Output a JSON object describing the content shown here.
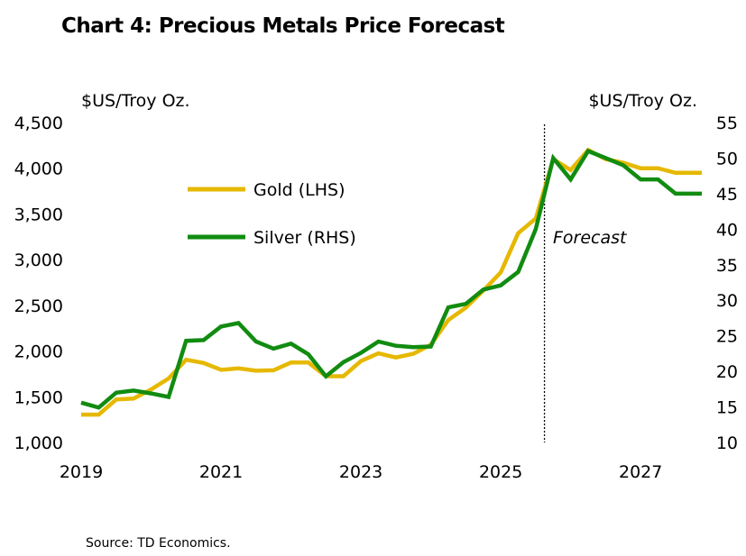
{
  "title": "Chart 4: Precious Metals Price Forecast",
  "source": "Source: TD Economics.",
  "colors": {
    "gold": "#E6B800",
    "silver": "#118C11",
    "forecast_line": "#000000"
  },
  "chart_data": {
    "type": "line",
    "title": "Chart 4: Precious Metals Price Forecast",
    "left_axis": {
      "label": "$US/Troy Oz.",
      "range": [
        1000,
        4500
      ],
      "ticks": [
        "1,000",
        "1,500",
        "2,000",
        "2,500",
        "3,000",
        "3,500",
        "4,000",
        "4,500"
      ]
    },
    "right_axis": {
      "label": "$US/Troy Oz.",
      "range": [
        10,
        55
      ],
      "ticks": [
        "10",
        "15",
        "20",
        "25",
        "30",
        "35",
        "40",
        "45",
        "50",
        "55"
      ]
    },
    "x_axis": {
      "range": [
        2019.0,
        2027.875
      ],
      "ticks": [
        "2019",
        "2021",
        "2023",
        "2025",
        "2027"
      ],
      "tick_values": [
        2019,
        2021,
        2023,
        2025,
        2027
      ]
    },
    "forecast_start": 2025.625,
    "forecast_label": "Forecast",
    "grid": false,
    "legend_position": "top-left inside plot",
    "series": [
      {
        "name": "Gold (LHS)",
        "axis": "left",
        "color": "#E6B800",
        "x": [
          2019.0,
          2019.25,
          2019.5,
          2019.75,
          2020.0,
          2020.25,
          2020.5,
          2020.75,
          2021.0,
          2021.25,
          2021.5,
          2021.75,
          2022.0,
          2022.25,
          2022.5,
          2022.75,
          2023.0,
          2023.25,
          2023.5,
          2023.75,
          2024.0,
          2024.25,
          2024.5,
          2024.75,
          2025.0,
          2025.25,
          2025.5,
          2025.75,
          2026.0,
          2026.25,
          2026.5,
          2026.75,
          2027.0,
          2027.25,
          2027.5,
          2027.75,
          2027.875
        ],
        "values": [
          1305,
          1305,
          1470,
          1480,
          1580,
          1700,
          1905,
          1870,
          1795,
          1810,
          1785,
          1790,
          1875,
          1875,
          1725,
          1725,
          1890,
          1975,
          1930,
          1970,
          2070,
          2340,
          2475,
          2660,
          2860,
          3290,
          3450,
          4100,
          3980,
          4200,
          4100,
          4060,
          4000,
          4000,
          3950,
          3950,
          3950
        ]
      },
      {
        "name": "Silver (RHS)",
        "axis": "right",
        "color": "#118C11",
        "x": [
          2019.0,
          2019.25,
          2019.5,
          2019.75,
          2020.0,
          2020.25,
          2020.5,
          2020.75,
          2021.0,
          2021.25,
          2021.5,
          2021.75,
          2022.0,
          2022.25,
          2022.5,
          2022.75,
          2023.0,
          2023.25,
          2023.5,
          2023.75,
          2024.0,
          2024.25,
          2024.5,
          2024.75,
          2025.0,
          2025.25,
          2025.5,
          2025.75,
          2026.0,
          2026.25,
          2026.5,
          2026.75,
          2027.0,
          2027.25,
          2027.5,
          2027.75,
          2027.875
        ],
        "values": [
          15.6,
          14.9,
          17.0,
          17.3,
          16.9,
          16.4,
          24.3,
          24.4,
          26.3,
          26.8,
          24.2,
          23.2,
          23.9,
          22.4,
          19.3,
          21.3,
          22.6,
          24.2,
          23.6,
          23.4,
          23.5,
          29.0,
          29.5,
          31.5,
          32.1,
          34.0,
          40.0,
          50.0,
          47.0,
          51.0,
          50.0,
          49.0,
          47.0,
          47.0,
          45.0,
          45.0,
          45.0
        ]
      }
    ]
  }
}
